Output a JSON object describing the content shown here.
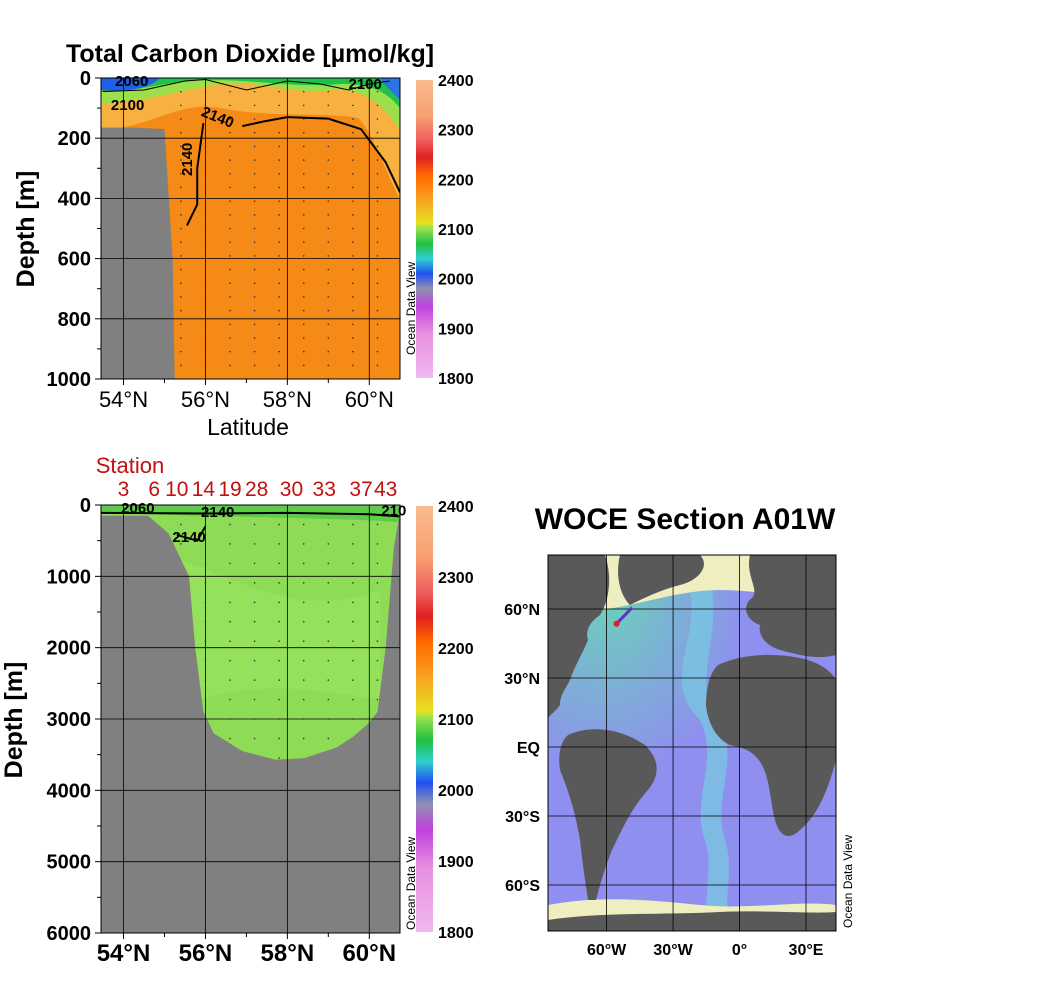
{
  "chart_data": [
    {
      "type": "heatmap",
      "id": "upper_section",
      "title": "Total Carbon Dioxide [µmol/kg]",
      "xlabel": "Latitude",
      "ylabel": "Depth [m]",
      "xlim": [
        53.45,
        60.75
      ],
      "ylim": [
        1000,
        0
      ],
      "x_ticks": [
        {
          "value": 54,
          "label": "54°N"
        },
        {
          "value": 56,
          "label": "56°N"
        },
        {
          "value": 58,
          "label": "58°N"
        },
        {
          "value": 60,
          "label": "60°N"
        }
      ],
      "y_ticks": [
        {
          "value": 0,
          "label": "0"
        },
        {
          "value": 200,
          "label": "200"
        },
        {
          "value": 400,
          "label": "400"
        },
        {
          "value": 600,
          "label": "600"
        },
        {
          "value": 800,
          "label": "800"
        },
        {
          "value": 1000,
          "label": "1000"
        }
      ],
      "contour_labels": [
        {
          "text": "2060",
          "lat": 54.2,
          "depth": 10
        },
        {
          "text": "2100",
          "lat": 54.1,
          "depth": 90
        },
        {
          "text": "2140",
          "lat": 56.3,
          "depth": 130
        },
        {
          "text": "2140",
          "lat": 55.55,
          "depth": 270
        },
        {
          "text": "2100",
          "lat": 59.9,
          "depth": 20
        }
      ],
      "contours": [
        {
          "level": 2140,
          "points": [
            [
              55.55,
              490
            ],
            [
              55.8,
              420
            ],
            [
              55.8,
              300
            ],
            [
              55.95,
              150
            ]
          ]
        },
        {
          "level": 2140,
          "points": [
            [
              56.9,
              160
            ],
            [
              57.4,
              145
            ],
            [
              58.0,
              130
            ],
            [
              59.0,
              135
            ],
            [
              59.8,
              170
            ],
            [
              60.4,
              280
            ],
            [
              60.75,
              380
            ]
          ]
        },
        {
          "level": 2100,
          "points": [
            [
              53.5,
              45
            ],
            [
              54.5,
              40
            ],
            [
              55.5,
              10
            ],
            [
              56.0,
              5
            ],
            [
              57.0,
              40
            ],
            [
              58.0,
              10
            ],
            [
              58.8,
              20
            ],
            [
              59.5,
              40
            ],
            [
              60.0,
              20
            ],
            [
              60.5,
              10
            ]
          ]
        }
      ],
      "bathymetry_depth": [
        [
          53.45,
          165
        ],
        [
          54.3,
          165
        ],
        [
          55.0,
          170
        ],
        [
          55.2,
          600
        ],
        [
          55.25,
          1000
        ]
      ],
      "colorbar": {
        "min": 1800,
        "max": 2400,
        "tick_labels": [
          "2400",
          "2300",
          "2200",
          "2100",
          "2000",
          "1900",
          "1800"
        ],
        "watermark": "Ocean Data View"
      }
    },
    {
      "type": "heatmap",
      "id": "full_section",
      "title": "Station",
      "ylabel": "Depth [m]",
      "xlim": [
        53.45,
        60.75
      ],
      "ylim": [
        6000,
        0
      ],
      "stations": [
        {
          "label": "3",
          "lat": 54.0
        },
        {
          "label": "6",
          "lat": 54.75
        },
        {
          "label": "10",
          "lat": 55.3
        },
        {
          "label": "14",
          "lat": 55.95
        },
        {
          "label": "19",
          "lat": 56.6
        },
        {
          "label": "28",
          "lat": 57.25
        },
        {
          "label": "30",
          "lat": 58.1
        },
        {
          "label": "33",
          "lat": 58.9
        },
        {
          "label": "37",
          "lat": 59.8
        },
        {
          "label": "43",
          "lat": 60.4
        }
      ],
      "x_ticks": [
        {
          "value": 54,
          "label": "54°N"
        },
        {
          "value": 56,
          "label": "56°N"
        },
        {
          "value": 58,
          "label": "58°N"
        },
        {
          "value": 60,
          "label": "60°N"
        }
      ],
      "y_ticks": [
        {
          "value": 0,
          "label": "0"
        },
        {
          "value": 1000,
          "label": "1000"
        },
        {
          "value": 2000,
          "label": "2000"
        },
        {
          "value": 3000,
          "label": "3000"
        },
        {
          "value": 4000,
          "label": "4000"
        },
        {
          "value": 5000,
          "label": "5000"
        },
        {
          "value": 6000,
          "label": "6000"
        }
      ],
      "contour_labels": [
        {
          "text": "2060",
          "lat": 54.35,
          "depth": 40
        },
        {
          "text": "2140",
          "lat": 56.3,
          "depth": 100
        },
        {
          "text": "2140",
          "lat": 55.6,
          "depth": 450
        },
        {
          "text": "210",
          "lat": 60.6,
          "depth": 80
        }
      ],
      "bathymetry_depth": [
        [
          53.45,
          150
        ],
        [
          54.6,
          150
        ],
        [
          55.1,
          400
        ],
        [
          55.6,
          1000
        ],
        [
          55.75,
          2000
        ],
        [
          55.95,
          2900
        ],
        [
          56.2,
          3200
        ],
        [
          56.9,
          3450
        ],
        [
          57.7,
          3570
        ],
        [
          58.4,
          3550
        ],
        [
          59.2,
          3400
        ],
        [
          59.6,
          3250
        ],
        [
          60.0,
          3050
        ],
        [
          60.2,
          2900
        ],
        [
          60.4,
          2000
        ],
        [
          60.6,
          600
        ],
        [
          60.75,
          100
        ]
      ],
      "colorbar": {
        "min": 1800,
        "max": 2400,
        "tick_labels": [
          "2400",
          "2300",
          "2200",
          "2100",
          "2000",
          "1900",
          "1800"
        ],
        "watermark": "Ocean Data View"
      }
    },
    {
      "type": "map",
      "id": "location_map",
      "title": "WOCE Section A01W",
      "lon_ticks": [
        {
          "value": -60,
          "label": "60°W"
        },
        {
          "value": -30,
          "label": "30°W"
        },
        {
          "value": 0,
          "label": "0°"
        },
        {
          "value": 30,
          "label": "30°E"
        }
      ],
      "lat_ticks": [
        {
          "value": 60,
          "label": "60°N"
        },
        {
          "value": 30,
          "label": "30°N"
        },
        {
          "value": 0,
          "label": "EQ"
        },
        {
          "value": -30,
          "label": "30°S"
        },
        {
          "value": -60,
          "label": "60°S"
        }
      ],
      "section_track": [
        [
          -55.5,
          53.6
        ],
        [
          -48.5,
          60.6
        ]
      ],
      "watermark": "Ocean Data View",
      "colors": {
        "land": "#595959",
        "ocean": "#8f8ff0",
        "shelf": "#eeeec0",
        "ridge": "#66d9b3"
      }
    }
  ]
}
